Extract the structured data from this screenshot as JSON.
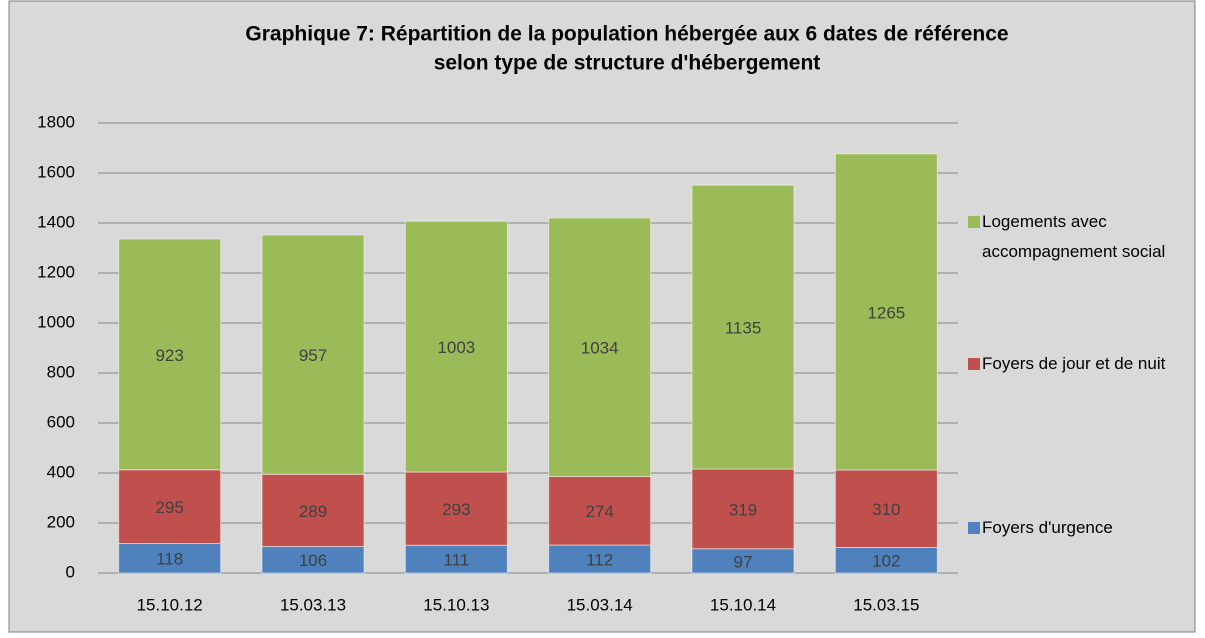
{
  "chart_data": {
    "type": "stacked_bar",
    "title": [
      "Graphique 7: Répartition de la population hébergée aux 6 dates de référence",
      "selon type de structure d'hébergement"
    ],
    "categories": [
      "15.10.12",
      "15.03.13",
      "15.10.13",
      "15.03.14",
      "15.10.14",
      "15.03.15"
    ],
    "series": [
      {
        "name": "Foyers d'urgence",
        "color": "#4f81bd",
        "values": [
          118,
          106,
          111,
          112,
          97,
          102
        ]
      },
      {
        "name": "Foyers de jour et de nuit",
        "color": "#c0504d",
        "values": [
          295,
          289,
          293,
          274,
          319,
          310
        ]
      },
      {
        "name": "Logements avec accompagnement social",
        "color": "#9bbb59",
        "values": [
          923,
          957,
          1003,
          1034,
          1135,
          1265
        ]
      }
    ],
    "ylim": [
      0,
      1800
    ],
    "yticks": [
      0,
      200,
      400,
      600,
      800,
      1000,
      1200,
      1400,
      1600,
      1800
    ],
    "grid": true,
    "legend": "right"
  }
}
